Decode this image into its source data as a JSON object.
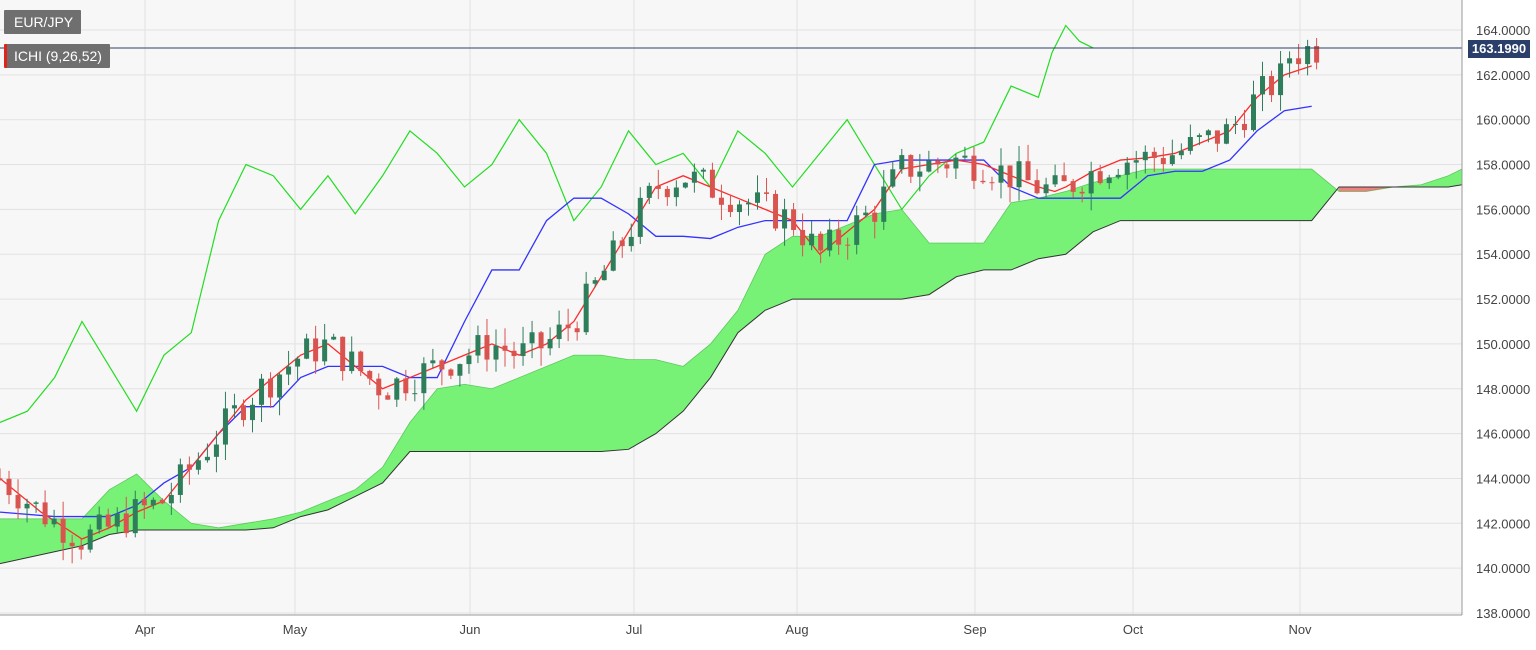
{
  "symbol": "EUR/JPY",
  "indicator": "ICHI (9,26,52)",
  "last_price": "163.1990",
  "colors": {
    "tenkan": "#ff2a2a",
    "kijun": "#3333ff",
    "chikou": "#22dd22",
    "cloud_bull": "#77f277",
    "cloud_bear": "#f08080",
    "candle_up": "#2e7d5b",
    "candle_down": "#d9534f",
    "price_line": "#2b3f6b"
  },
  "chart_data": {
    "type": "candlestick",
    "ylim": [
      138,
      164.5
    ],
    "yticks": [
      "138.0000",
      "140.0000",
      "142.0000",
      "144.0000",
      "146.0000",
      "148.0000",
      "150.0000",
      "152.0000",
      "154.0000",
      "156.0000",
      "158.0000",
      "160.0000",
      "162.0000",
      "164.0000"
    ],
    "xticks": [
      "Apr",
      "May",
      "Jun",
      "Jul",
      "Aug",
      "Sep",
      "Oct",
      "Nov"
    ],
    "chikou": [
      [
        -30,
        146.5
      ],
      [
        -20,
        147
      ],
      [
        -10,
        148.5
      ],
      [
        0,
        151
      ],
      [
        10,
        149
      ],
      [
        20,
        147
      ],
      [
        30,
        149.5
      ],
      [
        40,
        150.5
      ],
      [
        50,
        155.5
      ],
      [
        60,
        158
      ],
      [
        70,
        157.5
      ],
      [
        80,
        156
      ],
      [
        90,
        157.5
      ],
      [
        100,
        155.8
      ],
      [
        110,
        157.5
      ],
      [
        120,
        159.5
      ],
      [
        130,
        158.5
      ],
      [
        140,
        157
      ],
      [
        150,
        158
      ],
      [
        160,
        160
      ],
      [
        170,
        158.5
      ],
      [
        180,
        155.5
      ],
      [
        190,
        157
      ],
      [
        200,
        159.5
      ],
      [
        210,
        158
      ],
      [
        220,
        158.5
      ],
      [
        230,
        157
      ],
      [
        240,
        159.5
      ],
      [
        250,
        158.5
      ],
      [
        260,
        157
      ],
      [
        270,
        158.5
      ],
      [
        280,
        160
      ],
      [
        290,
        158
      ],
      [
        300,
        156
      ],
      [
        310,
        157.5
      ],
      [
        320,
        158.5
      ],
      [
        330,
        159
      ],
      [
        340,
        161.5
      ],
      [
        350,
        161
      ],
      [
        355,
        163
      ],
      [
        360,
        164.2
      ],
      [
        365,
        163.5
      ],
      [
        370,
        163.2
      ]
    ],
    "tenkan": [
      [
        -30,
        144
      ],
      [
        -15,
        142.5
      ],
      [
        0,
        141.3
      ],
      [
        10,
        141.8
      ],
      [
        20,
        142.5
      ],
      [
        30,
        143
      ],
      [
        40,
        144.5
      ],
      [
        50,
        146
      ],
      [
        60,
        147.5
      ],
      [
        70,
        148.5
      ],
      [
        80,
        149.5
      ],
      [
        90,
        150
      ],
      [
        100,
        149
      ],
      [
        110,
        148
      ],
      [
        120,
        148.5
      ],
      [
        130,
        149
      ],
      [
        140,
        149.5
      ],
      [
        150,
        150
      ],
      [
        160,
        149.5
      ],
      [
        170,
        150
      ],
      [
        180,
        151
      ],
      [
        190,
        153
      ],
      [
        200,
        155
      ],
      [
        210,
        157
      ],
      [
        220,
        157.5
      ],
      [
        230,
        157
      ],
      [
        240,
        156.5
      ],
      [
        250,
        156
      ],
      [
        260,
        155.5
      ],
      [
        270,
        154
      ],
      [
        280,
        155
      ],
      [
        290,
        156
      ],
      [
        300,
        157.8
      ],
      [
        310,
        158
      ],
      [
        320,
        158.2
      ],
      [
        330,
        158
      ],
      [
        340,
        157.5
      ],
      [
        350,
        157
      ],
      [
        356,
        156.8
      ],
      [
        360,
        157
      ],
      [
        370,
        157.7
      ],
      [
        380,
        158.2
      ],
      [
        390,
        158.3
      ],
      [
        400,
        158.5
      ],
      [
        410,
        159
      ],
      [
        420,
        159.5
      ],
      [
        430,
        161
      ],
      [
        440,
        162
      ],
      [
        450,
        162.4
      ]
    ],
    "kijun": [
      [
        -30,
        142.5
      ],
      [
        -10,
        142.3
      ],
      [
        0,
        142.3
      ],
      [
        10,
        142.3
      ],
      [
        20,
        142.8
      ],
      [
        30,
        143.8
      ],
      [
        40,
        144.5
      ],
      [
        50,
        146
      ],
      [
        60,
        147.2
      ],
      [
        70,
        147.2
      ],
      [
        80,
        148.5
      ],
      [
        90,
        149
      ],
      [
        100,
        149
      ],
      [
        110,
        149
      ],
      [
        120,
        148.5
      ],
      [
        130,
        148.5
      ],
      [
        140,
        151
      ],
      [
        150,
        153.3
      ],
      [
        160,
        153.3
      ],
      [
        170,
        155.5
      ],
      [
        180,
        156.5
      ],
      [
        190,
        156.5
      ],
      [
        200,
        155.8
      ],
      [
        210,
        154.8
      ],
      [
        220,
        154.8
      ],
      [
        230,
        154.7
      ],
      [
        240,
        155.2
      ],
      [
        250,
        155.5
      ],
      [
        260,
        155.5
      ],
      [
        270,
        155.5
      ],
      [
        280,
        155.5
      ],
      [
        290,
        158
      ],
      [
        300,
        158.2
      ],
      [
        310,
        158.2
      ],
      [
        320,
        158.2
      ],
      [
        330,
        158.2
      ],
      [
        340,
        157
      ],
      [
        350,
        156.5
      ],
      [
        360,
        156.5
      ],
      [
        370,
        156.5
      ],
      [
        380,
        156.5
      ],
      [
        390,
        157.5
      ],
      [
        400,
        157.7
      ],
      [
        410,
        157.7
      ],
      [
        420,
        158.2
      ],
      [
        430,
        159.5
      ],
      [
        440,
        160.4
      ],
      [
        450,
        160.6
      ]
    ],
    "cloud_a": [
      [
        -30,
        142.2
      ],
      [
        0,
        142.2
      ],
      [
        10,
        143.5
      ],
      [
        20,
        144.2
      ],
      [
        30,
        143
      ],
      [
        40,
        142
      ],
      [
        50,
        141.8
      ],
      [
        60,
        142
      ],
      [
        70,
        142.2
      ],
      [
        80,
        142.5
      ],
      [
        90,
        143
      ],
      [
        100,
        143.5
      ],
      [
        110,
        144.5
      ],
      [
        120,
        146.5
      ],
      [
        130,
        148
      ],
      [
        140,
        148.2
      ],
      [
        150,
        148
      ],
      [
        160,
        148.5
      ],
      [
        170,
        149
      ],
      [
        180,
        149.5
      ],
      [
        190,
        149.5
      ],
      [
        200,
        149.3
      ],
      [
        210,
        149.3
      ],
      [
        220,
        149
      ],
      [
        230,
        150
      ],
      [
        240,
        151.5
      ],
      [
        250,
        154
      ],
      [
        260,
        154.8
      ],
      [
        270,
        154.8
      ],
      [
        280,
        155.3
      ],
      [
        290,
        155.8
      ],
      [
        300,
        156
      ],
      [
        310,
        154.5
      ],
      [
        320,
        154.5
      ],
      [
        330,
        154.5
      ],
      [
        340,
        156.3
      ],
      [
        350,
        156.5
      ],
      [
        360,
        156.8
      ],
      [
        370,
        157.2
      ],
      [
        380,
        157.5
      ],
      [
        390,
        157.8
      ],
      [
        400,
        157.8
      ],
      [
        410,
        157.8
      ],
      [
        420,
        157.8
      ],
      [
        430,
        157.8
      ],
      [
        440,
        157.8
      ],
      [
        450,
        157.8
      ],
      [
        460,
        156.8
      ],
      [
        470,
        156.8
      ],
      [
        480,
        157
      ],
      [
        490,
        157.1
      ],
      [
        500,
        157.5
      ],
      [
        505,
        157.8
      ]
    ],
    "cloud_b": [
      [
        -30,
        140.2
      ],
      [
        0,
        141
      ],
      [
        10,
        141.5
      ],
      [
        20,
        141.7
      ],
      [
        30,
        141.7
      ],
      [
        40,
        141.7
      ],
      [
        50,
        141.7
      ],
      [
        60,
        141.7
      ],
      [
        70,
        141.8
      ],
      [
        80,
        142.3
      ],
      [
        90,
        142.6
      ],
      [
        100,
        143.2
      ],
      [
        110,
        143.8
      ],
      [
        120,
        145.2
      ],
      [
        130,
        145.2
      ],
      [
        140,
        145.2
      ],
      [
        150,
        145.2
      ],
      [
        160,
        145.2
      ],
      [
        170,
        145.2
      ],
      [
        180,
        145.2
      ],
      [
        190,
        145.2
      ],
      [
        200,
        145.3
      ],
      [
        210,
        146
      ],
      [
        220,
        147
      ],
      [
        230,
        148.5
      ],
      [
        240,
        150.5
      ],
      [
        250,
        151.5
      ],
      [
        260,
        152
      ],
      [
        270,
        152
      ],
      [
        280,
        152
      ],
      [
        290,
        152
      ],
      [
        300,
        152
      ],
      [
        310,
        152.2
      ],
      [
        320,
        153
      ],
      [
        330,
        153.3
      ],
      [
        340,
        153.3
      ],
      [
        350,
        153.8
      ],
      [
        360,
        154
      ],
      [
        370,
        155
      ],
      [
        380,
        155.5
      ],
      [
        390,
        155.5
      ],
      [
        400,
        155.5
      ],
      [
        410,
        155.5
      ],
      [
        420,
        155.5
      ],
      [
        430,
        155.5
      ],
      [
        440,
        155.5
      ],
      [
        450,
        155.5
      ],
      [
        460,
        157
      ],
      [
        470,
        157
      ],
      [
        480,
        157
      ],
      [
        490,
        157
      ],
      [
        500,
        157
      ],
      [
        505,
        157.1
      ]
    ]
  }
}
